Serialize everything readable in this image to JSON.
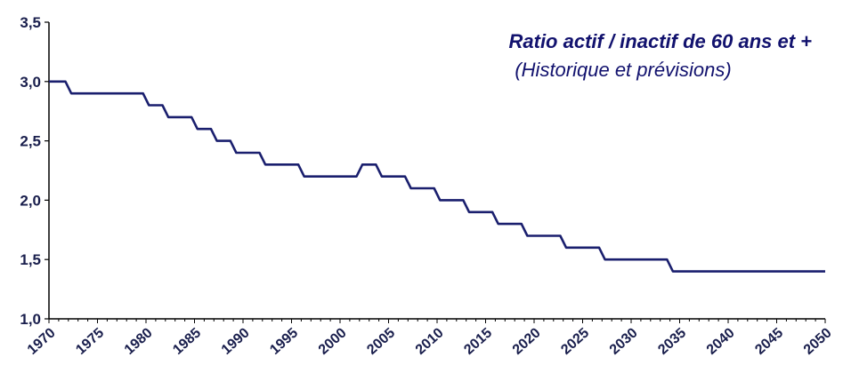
{
  "chart_data": {
    "type": "line",
    "title": "Ratio actif / inactif de 60 ans et +",
    "subtitle": "(Historique et prévisions)",
    "xlabel": "",
    "ylabel": "",
    "xlim": [
      1970,
      2050
    ],
    "ylim": [
      1.0,
      3.5
    ],
    "y_ticks": [
      "1,0",
      "1,5",
      "2,0",
      "2,5",
      "3,0",
      "3,5"
    ],
    "x_ticks": [
      "1970",
      "1975",
      "1980",
      "1985",
      "1990",
      "1995",
      "2000",
      "2005",
      "2010",
      "2015",
      "2020",
      "2025",
      "2030",
      "2035",
      "2040",
      "2045",
      "2050"
    ],
    "grid": false,
    "line_color": "#1a1f6e",
    "series": [
      {
        "x": [
          1970,
          1971,
          1972,
          1973,
          1974,
          1975,
          1976,
          1977,
          1978,
          1979,
          1980,
          1981,
          1982,
          1983,
          1984,
          1985,
          1986,
          1987,
          1988,
          1989,
          1990,
          1991,
          1992,
          1993,
          1994,
          1995,
          1996,
          1997,
          1998,
          1999,
          2000,
          2001,
          2002,
          2003,
          2004,
          2005,
          2006,
          2007,
          2008,
          2009,
          2010,
          2011,
          2012,
          2013,
          2014,
          2015,
          2016,
          2017,
          2018,
          2019,
          2020,
          2021,
          2022,
          2023,
          2024,
          2025,
          2026,
          2027,
          2028,
          2029,
          2030,
          2031,
          2032,
          2033,
          2034,
          2035,
          2036,
          2037,
          2038,
          2039,
          2040,
          2041,
          2042,
          2043,
          2044,
          2045,
          2046,
          2047,
          2048,
          2049,
          2050
        ],
        "values": [
          3.0,
          3.0,
          2.9,
          2.9,
          2.9,
          2.9,
          2.9,
          2.9,
          2.9,
          2.9,
          2.8,
          2.8,
          2.7,
          2.7,
          2.7,
          2.6,
          2.6,
          2.5,
          2.5,
          2.4,
          2.4,
          2.4,
          2.3,
          2.3,
          2.3,
          2.3,
          2.2,
          2.2,
          2.2,
          2.2,
          2.2,
          2.2,
          2.3,
          2.3,
          2.2,
          2.2,
          2.2,
          2.1,
          2.1,
          2.1,
          2.0,
          2.0,
          2.0,
          1.9,
          1.9,
          1.9,
          1.8,
          1.8,
          1.8,
          1.7,
          1.7,
          1.7,
          1.7,
          1.6,
          1.6,
          1.6,
          1.6,
          1.5,
          1.5,
          1.5,
          1.5,
          1.5,
          1.5,
          1.5,
          1.4,
          1.4,
          1.4,
          1.4,
          1.4,
          1.4,
          1.4,
          1.4,
          1.4,
          1.4,
          1.4,
          1.4,
          1.4,
          1.4,
          1.4,
          1.4,
          1.4
        ]
      }
    ]
  }
}
